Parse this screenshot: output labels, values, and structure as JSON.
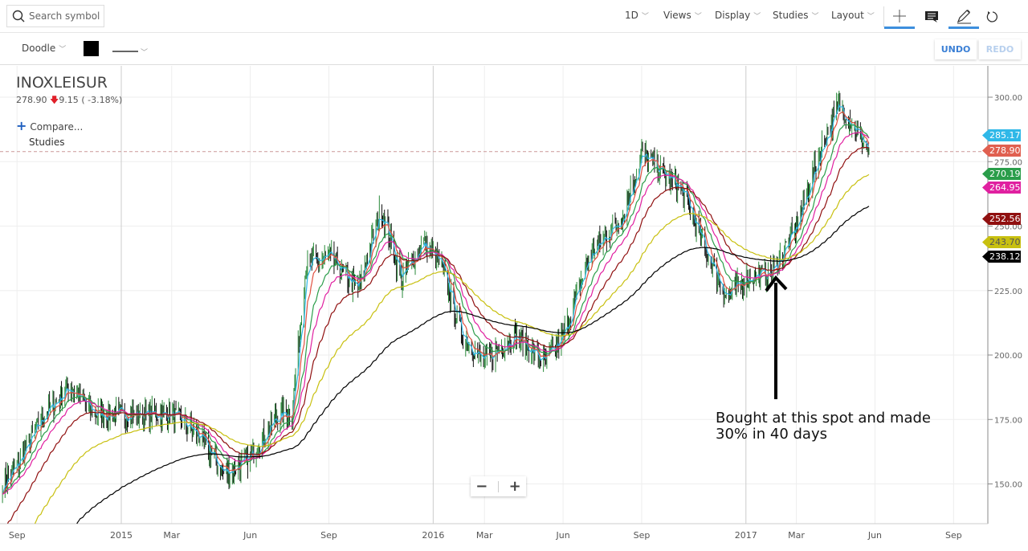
{
  "header": {
    "search_placeholder": "Search symbol",
    "menus": [
      "1D",
      "Views",
      "Display",
      "Studies",
      "Layout"
    ]
  },
  "drawing": {
    "tool": "Doodle",
    "color": "#000000",
    "undo": "UNDO",
    "redo": "REDO"
  },
  "symbol": {
    "name": "INOXLEISUR",
    "last": "278.90",
    "change": "9.15",
    "change_pct": "( -3.18%)",
    "direction": "down"
  },
  "compare_label": "Compare...",
  "studies_label": "Studies",
  "annotation": "Bought at this spot and made 30% in 40 days",
  "zoom": {
    "minus": "−",
    "plus": "+"
  },
  "chart_data": {
    "type": "candlestick",
    "ylim": [
      135,
      310
    ],
    "y_ticks": [
      "300.00",
      "275.00",
      "250.00",
      "225.00",
      "200.00",
      "175.00",
      "150.00"
    ],
    "x_ticks": [
      "Sep",
      "2015",
      "Mar",
      "Jun",
      "Sep",
      "2016",
      "Mar",
      "Jun",
      "Sep",
      "2017",
      "Mar",
      "Jun",
      "Sep"
    ],
    "x_tick_dates": [
      "2014-09-01",
      "2015-01-01",
      "2015-03-01",
      "2015-06-01",
      "2015-09-01",
      "2016-01-01",
      "2016-03-01",
      "2016-06-01",
      "2016-09-01",
      "2017-01-01",
      "2017-03-01",
      "2017-06-01",
      "2017-09-01"
    ],
    "close_series": [
      [
        "2014-08-15",
        150
      ],
      [
        "2014-09-01",
        157
      ],
      [
        "2014-10-01",
        176
      ],
      [
        "2014-11-01",
        188
      ],
      [
        "2014-12-01",
        177
      ],
      [
        "2015-01-01",
        177
      ],
      [
        "2015-02-01",
        177
      ],
      [
        "2015-03-01",
        177
      ],
      [
        "2015-04-01",
        169
      ],
      [
        "2015-05-01",
        154
      ],
      [
        "2015-06-01",
        160
      ],
      [
        "2015-07-01",
        176
      ],
      [
        "2015-07-20",
        178
      ],
      [
        "2015-08-05",
        235
      ],
      [
        "2015-09-01",
        238
      ],
      [
        "2015-10-05",
        225
      ],
      [
        "2015-11-01",
        257
      ],
      [
        "2015-11-25",
        229
      ],
      [
        "2015-12-20",
        244
      ],
      [
        "2016-01-10",
        235
      ],
      [
        "2016-02-05",
        207
      ],
      [
        "2016-03-01",
        197
      ],
      [
        "2016-04-05",
        208
      ],
      [
        "2016-05-10",
        197
      ],
      [
        "2016-06-01",
        207
      ],
      [
        "2016-07-01",
        238
      ],
      [
        "2016-08-10",
        254
      ],
      [
        "2016-09-01",
        278
      ],
      [
        "2016-10-01",
        269
      ],
      [
        "2016-10-20",
        263
      ],
      [
        "2016-11-10",
        244
      ],
      [
        "2016-12-10",
        222
      ],
      [
        "2017-01-01",
        230
      ],
      [
        "2017-02-01",
        232
      ],
      [
        "2017-03-01",
        250
      ],
      [
        "2017-04-01",
        282
      ],
      [
        "2017-04-20",
        297
      ],
      [
        "2017-05-05",
        290
      ],
      [
        "2017-05-25",
        279
      ]
    ],
    "last_price": 278.9,
    "moving_averages": [
      {
        "value": "285.17",
        "color": "#2fb8e8"
      },
      {
        "value": "278.90",
        "color": "#e05040"
      },
      {
        "value": "270.19",
        "color": "#2a9d4a"
      },
      {
        "value": "264.95",
        "color": "#e020a0"
      },
      {
        "value": "252.56",
        "color": "#901010"
      },
      {
        "value": "243.70",
        "color": "#c8c010"
      },
      {
        "value": "238.12",
        "color": "#000000"
      }
    ],
    "grid": true
  }
}
